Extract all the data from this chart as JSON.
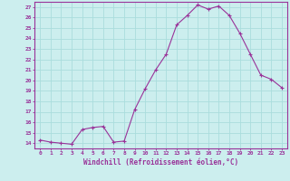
{
  "x": [
    0,
    1,
    2,
    3,
    4,
    5,
    6,
    7,
    8,
    9,
    10,
    11,
    12,
    13,
    14,
    15,
    16,
    17,
    18,
    19,
    20,
    21,
    22,
    23
  ],
  "y": [
    14.3,
    14.1,
    14.0,
    13.9,
    15.3,
    15.5,
    15.6,
    14.1,
    14.2,
    17.2,
    19.2,
    21.0,
    22.5,
    25.3,
    26.2,
    27.2,
    26.8,
    27.1,
    26.2,
    24.5,
    22.5,
    20.5,
    20.1,
    19.3
  ],
  "line_color": "#993399",
  "marker": "+",
  "marker_color": "#993399",
  "bg_color": "#cceeee",
  "grid_color": "#aadddd",
  "axis_color": "#993399",
  "tick_color": "#993399",
  "xlabel": "Windchill (Refroidissement éolien,°C)",
  "xlabel_color": "#993399",
  "ylim": [
    13.5,
    27.5
  ],
  "yticks": [
    14,
    15,
    16,
    17,
    18,
    19,
    20,
    21,
    22,
    23,
    24,
    25,
    26,
    27
  ],
  "xlim": [
    -0.5,
    23.5
  ],
  "xticks": [
    0,
    1,
    2,
    3,
    4,
    5,
    6,
    7,
    8,
    9,
    10,
    11,
    12,
    13,
    14,
    15,
    16,
    17,
    18,
    19,
    20,
    21,
    22,
    23
  ]
}
